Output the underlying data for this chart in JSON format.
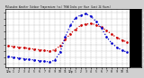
{
  "title": "Milwaukee Weather Outdoor Temperature (vs) THSW Index per Hour (Last 24 Hours)",
  "outdoor_temp": [
    38,
    37,
    36,
    35,
    34,
    33,
    32,
    31,
    30,
    32,
    38,
    48,
    57,
    64,
    70,
    72,
    73,
    71,
    67,
    62,
    56,
    51,
    47,
    44
  ],
  "thsw_index": [
    22,
    20,
    19,
    18,
    17,
    16,
    15,
    14,
    13,
    16,
    28,
    52,
    70,
    82,
    86,
    88,
    84,
    76,
    66,
    52,
    42,
    36,
    31,
    28
  ],
  "hours": [
    "12a",
    "1",
    "2",
    "3",
    "4",
    "5",
    "6",
    "7",
    "8",
    "9",
    "10",
    "11",
    "12p",
    "1",
    "2",
    "3",
    "4",
    "5",
    "6",
    "7",
    "8",
    "9",
    "10",
    "11"
  ],
  "outdoor_color": "#cc0000",
  "thsw_color": "#0000cc",
  "fig_bg": "#d0d0d0",
  "plot_bg": "#ffffff",
  "right_bar_bg": "#000000",
  "grid_color": "#888888",
  "yticks": [
    10,
    20,
    30,
    40,
    50,
    60,
    70,
    80,
    90
  ],
  "ylim": [
    5,
    95
  ],
  "title_color": "#000000"
}
